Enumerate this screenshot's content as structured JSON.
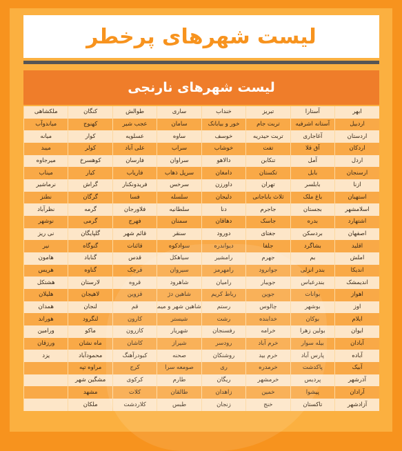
{
  "title": "لیست شهرهای پرخطر",
  "subtitle": "لیست شهرهای نارنجی",
  "rows": [
    [
      "ابهر",
      "آستارا",
      "تبریز",
      "خنداب",
      "ساری",
      "طوالش",
      "کنگان",
      "ملکشاهی"
    ],
    [
      "اردبیل",
      "آستانه اشرفیه",
      "تربت جام",
      "خور و بیابانک",
      "سامان",
      "عجب شیر",
      "کهنوج",
      "میاندوآب"
    ],
    [
      "اردستان",
      "آغاجاری",
      "تربت حیدریه",
      "خوسف",
      "ساوه",
      "عسلویه",
      "کوار",
      "میانه"
    ],
    [
      "اردکان",
      "آق قلا",
      "تفت",
      "خوشاب",
      "سراب",
      "علی آباد",
      "کولر",
      "میبد"
    ],
    [
      "اردل",
      "آمل",
      "تنکابن",
      "دالاهو",
      "سراوان",
      "فارسان",
      "کوهسرخ",
      "میرجاوه"
    ],
    [
      "ارسنجان",
      "بابل",
      "تکستان",
      "دامغان",
      "سرپل ذهاب",
      "فاریاب",
      "کیار",
      "میناب"
    ],
    [
      "ازنا",
      "بابلسر",
      "تهران",
      "داورزن",
      "سرخس",
      "فریدونکنار",
      "گراش",
      "نرماشیر"
    ],
    [
      "استهبان",
      "باغ ملک",
      "ثلاث باباجانی",
      "دلیجان",
      "سلسله",
      "فسا",
      "گرگان",
      "نطنز"
    ],
    [
      "اسلامشهر",
      "بجستان",
      "جاجرم",
      "دنا",
      "سلطانیه",
      "فلاورجان",
      "گرمه",
      "نظرآباد"
    ],
    [
      "اشتهارد",
      "بدره",
      "جاسک",
      "دهاقان",
      "سمنان",
      "فهرج",
      "گرمی",
      "نوشهر"
    ],
    [
      "اصفهان",
      "بردسکن",
      "جغتای",
      "دورود",
      "سنقر",
      "قائم شهر",
      "گلپایگان",
      "نی ریز"
    ],
    [
      "اقلید",
      "بشاگرد",
      "جلفا",
      "دیواندره",
      "سوادکوه",
      "قائنات",
      "گنوگاه",
      "نیر"
    ],
    [
      "املش",
      "بم",
      "جهرم",
      "رامشیر",
      "سیاهکل",
      "قدس",
      "گناباد",
      "هامون"
    ],
    [
      "اندیکا",
      "بندر انزلی",
      "جوانرود",
      "رامهرمز",
      "سیروان",
      "قرچک",
      "گناوه",
      "هریس"
    ],
    [
      "اندیمشک",
      "بندرعباس",
      "جویبار",
      "رامیان",
      "شاهرود",
      "قروه",
      "لارستان",
      "هشتکل"
    ],
    [
      "اهواز",
      "بوانات",
      "جوین",
      "رباط کریم",
      "شاهین دژ",
      "قزوین",
      "لاهیجان",
      "هلیلان"
    ],
    [
      "اوز",
      "بوشهر",
      "چالوس",
      "رستم",
      "شاهین شهر و میمه",
      "قم",
      "لنجان",
      "همدان"
    ],
    [
      "ایلام",
      "بوکان",
      "خدابنده",
      "رشت",
      "شیستر",
      "کارون",
      "لنگرود",
      "هوراند"
    ],
    [
      "ایوان",
      "بولین زهرا",
      "خرامه",
      "رفسنجان",
      "شهریار",
      "کازرون",
      "ماکو",
      "ورامین"
    ],
    [
      "آبادان",
      "بیله سوار",
      "خرم آباد",
      "رودسر",
      "شیراز",
      "کاشان",
      "ماه نشان",
      "ورزقان"
    ],
    [
      "آباده",
      "پارس آباد",
      "خرم بید",
      "روشنکان",
      "صحنه",
      "کبودرآهنگ",
      "محمودآباد",
      "یزد"
    ],
    [
      "آبیک",
      "پاکدشت",
      "خرمدره",
      "ری",
      "صومعه سرا",
      "کرج",
      "مراوه تپه",
      ""
    ],
    [
      "آذرشهر",
      "پردیس",
      "خرمشهر",
      "ریگان",
      "طارم",
      "کرکوی",
      "مشگین شهر",
      ""
    ],
    [
      "آرادان",
      "پیشوا",
      "خمین",
      "زاهدان",
      "طالقان",
      "کلات",
      "مشهد",
      ""
    ],
    [
      "آزادشهر",
      "تاکستان",
      "خنج",
      "زنجان",
      "طبس",
      "کلاردشت",
      "ملکان",
      ""
    ]
  ]
}
